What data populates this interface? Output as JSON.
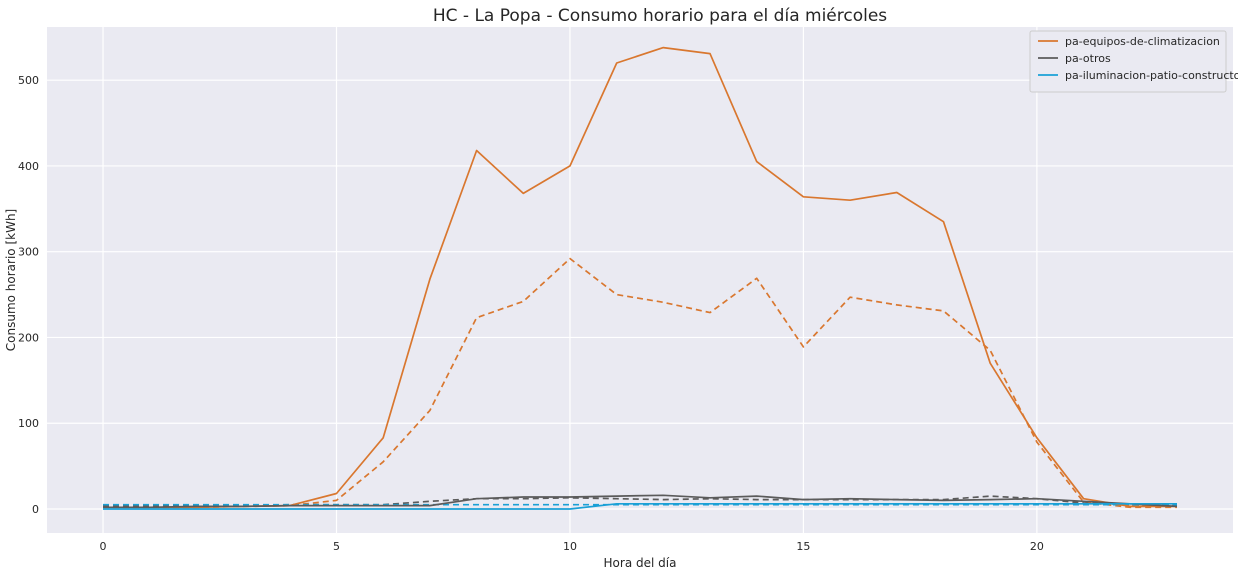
{
  "chart_data": {
    "type": "line",
    "title": "HC - La Popa - Consumo horario para el día miércoles",
    "xlabel": "Hora del día",
    "ylabel": "Consumo horario [kWh]",
    "xlim": [
      -1.2,
      24.2
    ],
    "ylim": [
      -28,
      562
    ],
    "xticks": [
      0,
      5,
      10,
      15,
      20
    ],
    "yticks": [
      0,
      100,
      200,
      300,
      400,
      500
    ],
    "grid": true,
    "legend_position": "top-right",
    "x": [
      0,
      1,
      2,
      3,
      4,
      5,
      6,
      7,
      8,
      9,
      10,
      11,
      12,
      13,
      14,
      15,
      16,
      17,
      18,
      19,
      20,
      21,
      22,
      23
    ],
    "series": [
      {
        "name": "pa-equipos-de-climatizacion",
        "color": "#d9772f",
        "style": "solid",
        "in_legend": true,
        "values": [
          2,
          2,
          2,
          3,
          4,
          18,
          83,
          268,
          418,
          368,
          400,
          520,
          538,
          531,
          405,
          364,
          360,
          369,
          335,
          170,
          83,
          12,
          3,
          3
        ]
      },
      {
        "name": "pa-equipos-de-climatizacion (dashed)",
        "color": "#d9772f",
        "style": "dashed",
        "in_legend": false,
        "values": [
          2,
          2,
          2,
          3,
          4,
          10,
          55,
          115,
          223,
          242,
          292,
          250,
          241,
          229,
          269,
          189,
          247,
          238,
          231,
          185,
          78,
          8,
          2,
          2
        ]
      },
      {
        "name": "pa-otros",
        "color": "#5b5b5b",
        "style": "solid",
        "in_legend": true,
        "values": [
          2,
          2,
          3,
          3,
          4,
          4,
          4,
          4,
          12,
          14,
          14,
          15,
          16,
          13,
          15,
          11,
          12,
          11,
          10,
          11,
          12,
          9,
          6,
          3
        ]
      },
      {
        "name": "pa-otros (dashed)",
        "color": "#5b5b5b",
        "style": "dashed",
        "in_legend": false,
        "values": [
          4,
          4,
          4,
          4,
          5,
          5,
          5,
          9,
          12,
          12,
          13,
          12,
          11,
          12,
          11,
          11,
          11,
          11,
          11,
          15,
          12,
          7,
          5,
          4
        ]
      },
      {
        "name": "pa-iluminacion-patio-constructor",
        "color": "#1aa0d6",
        "style": "solid",
        "in_legend": true,
        "values": [
          0,
          0,
          0,
          0,
          0,
          0,
          0,
          0,
          0,
          0,
          0,
          6,
          6,
          6,
          6,
          6,
          6,
          6,
          6,
          6,
          6,
          6,
          6,
          6
        ]
      },
      {
        "name": "pa-iluminacion-patio-constructor (dashed)",
        "color": "#1aa0d6",
        "style": "dashed",
        "in_legend": false,
        "values": [
          5,
          5,
          5,
          5,
          5,
          5,
          5,
          5,
          5,
          5,
          5,
          5,
          5,
          5,
          5,
          5,
          5,
          5,
          5,
          5,
          5,
          5,
          5,
          5
        ]
      }
    ]
  }
}
